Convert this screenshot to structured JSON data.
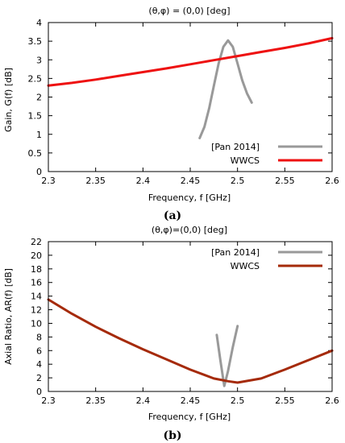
{
  "figure": {
    "panel_a_caption": "(a)",
    "panel_b_caption": "(b)"
  },
  "chart_data": [
    {
      "type": "line",
      "title": "(θ,φ) = (0,0) [deg]",
      "xlabel": "Frequency, f [GHz]",
      "ylabel": "Gain, G(f) [dB]",
      "xlim": [
        2.3,
        2.6
      ],
      "ylim": [
        0,
        4
      ],
      "xticks": [
        "2.3",
        "2.35",
        "2.4",
        "2.45",
        "2.5",
        "2.55",
        "2.6"
      ],
      "yticks": [
        "0",
        "0.5",
        "1",
        "1.5",
        "2",
        "2.5",
        "3",
        "3.5",
        "4"
      ],
      "legend_position": "bottom-right",
      "grid": false,
      "series": [
        {
          "name": "[Pan 2014]",
          "color": "#999999",
          "x": [
            2.46,
            2.465,
            2.47,
            2.475,
            2.48,
            2.485,
            2.49,
            2.495,
            2.5,
            2.505,
            2.51,
            2.515
          ],
          "y": [
            0.9,
            1.2,
            1.7,
            2.3,
            2.9,
            3.35,
            3.52,
            3.35,
            2.9,
            2.45,
            2.1,
            1.85
          ]
        },
        {
          "name": "WWCS",
          "color": "#ee1111",
          "x": [
            2.3,
            2.325,
            2.35,
            2.375,
            2.4,
            2.425,
            2.45,
            2.475,
            2.5,
            2.525,
            2.55,
            2.575,
            2.6
          ],
          "y": [
            2.31,
            2.38,
            2.47,
            2.57,
            2.67,
            2.77,
            2.88,
            2.99,
            3.1,
            3.21,
            3.32,
            3.44,
            3.58
          ]
        }
      ]
    },
    {
      "type": "line",
      "title": "(θ,φ)=(0,0) [deg]",
      "xlabel": "Frequency, f [GHz]",
      "ylabel": "Axial Ratio, AR(f) [dB]",
      "xlim": [
        2.3,
        2.6
      ],
      "ylim": [
        0,
        22
      ],
      "xticks": [
        "2.3",
        "2.35",
        "2.4",
        "2.45",
        "2.5",
        "2.55",
        "2.6"
      ],
      "yticks": [
        "0",
        "2",
        "4",
        "6",
        "8",
        "10",
        "12",
        "14",
        "16",
        "18",
        "20",
        "22"
      ],
      "legend_position": "top-right",
      "grid": false,
      "series": [
        {
          "name": "[Pan 2014]",
          "color": "#999999",
          "x": [
            2.478,
            2.482,
            2.486,
            2.49,
            2.495,
            2.5
          ],
          "y": [
            8.3,
            4.5,
            0.8,
            3.0,
            6.5,
            9.6
          ]
        },
        {
          "name": "WWCS",
          "color": "#a52a0a",
          "x": [
            2.3,
            2.325,
            2.35,
            2.375,
            2.4,
            2.425,
            2.45,
            2.475,
            2.49,
            2.5,
            2.525,
            2.55,
            2.575,
            2.6
          ],
          "y": [
            13.5,
            11.4,
            9.5,
            7.8,
            6.2,
            4.7,
            3.2,
            1.9,
            1.5,
            1.3,
            1.9,
            3.2,
            4.6,
            6.0
          ]
        }
      ]
    }
  ]
}
